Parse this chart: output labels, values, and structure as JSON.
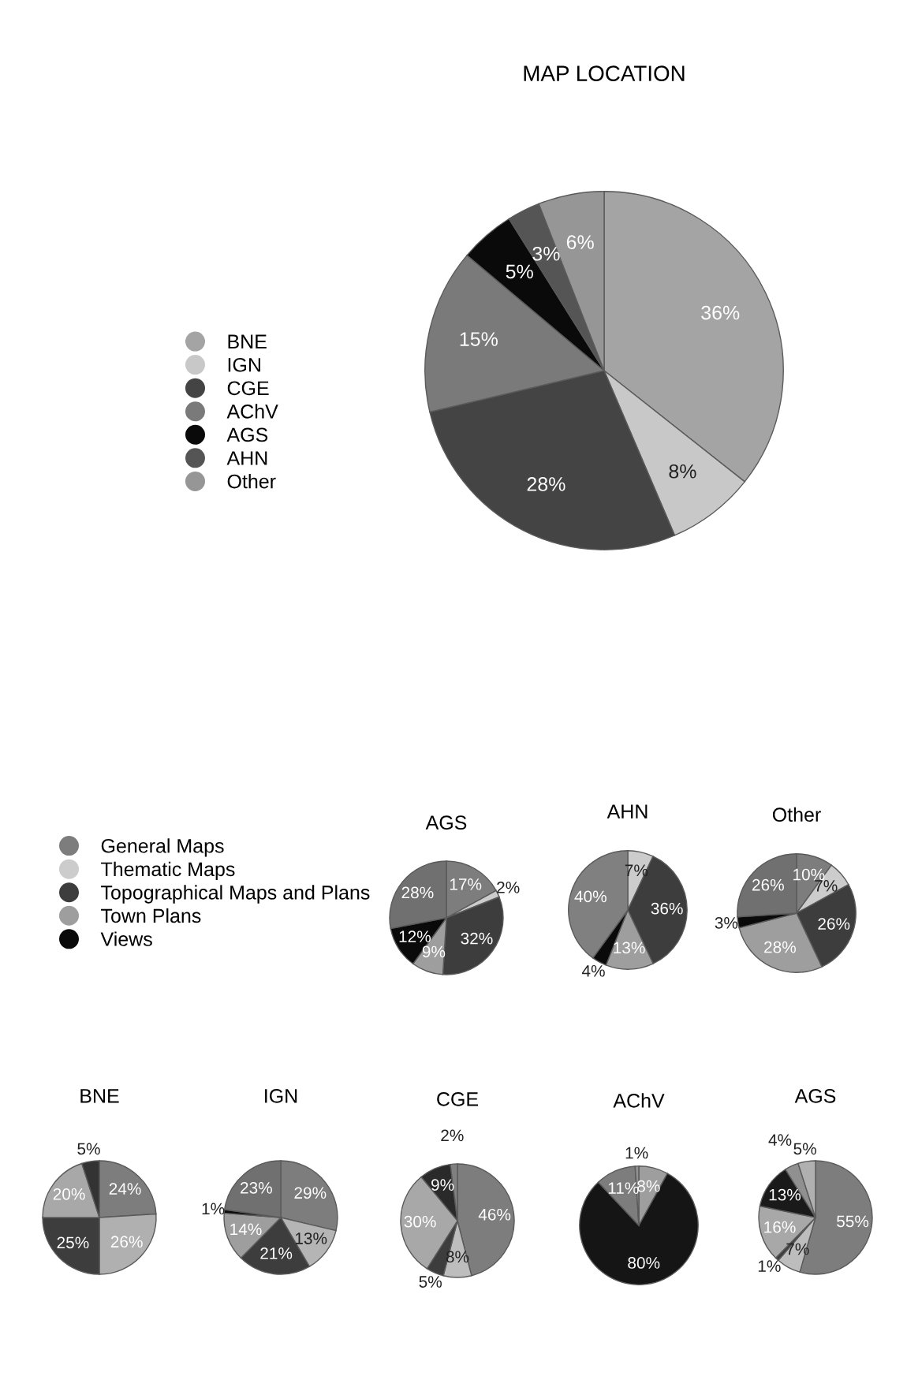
{
  "chart_data": [
    {
      "type": "pie",
      "title": "MAP LOCATION",
      "categories": [
        "BNE",
        "IGN",
        "CGE",
        "AChV",
        "AGS",
        "AHN",
        "Other"
      ],
      "values": [
        36,
        8,
        28,
        15,
        5,
        3,
        6
      ],
      "value_labels": [
        "36%",
        "8%",
        "28%",
        "15%",
        "5%",
        "3%",
        "6%"
      ],
      "colors": [
        "#a4a4a4",
        "#c8c8c8",
        "#444444",
        "#7a7a7a",
        "#0a0a0a",
        "#555555",
        "#969696"
      ],
      "legend": "left"
    },
    {
      "type": "pie",
      "title": "AGS",
      "categories": [
        "General Maps",
        "Thematic Maps",
        "Topographical Maps and Plans",
        "Town Plans",
        "Views",
        null
      ],
      "values": [
        17,
        2,
        32,
        9,
        12,
        28
      ],
      "value_labels": [
        "17%",
        "2%",
        "32%",
        "9%",
        "12%",
        "28%"
      ],
      "colors": [
        "#7d7d7d",
        "#cccccc",
        "#3d3d3d",
        "#9e9e9e",
        "#0a0a0a",
        "#707070"
      ],
      "legend": "left"
    },
    {
      "type": "pie",
      "title": "AHN",
      "categories": [
        null,
        null,
        null,
        null,
        null
      ],
      "values": [
        7,
        36,
        13,
        4,
        40
      ],
      "value_labels": [
        "7%",
        "36%",
        "13%",
        "4%",
        "40%"
      ],
      "colors": [
        "#cccccc",
        "#3d3d3d",
        "#9e9e9e",
        "#0a0a0a",
        "#808080"
      ]
    },
    {
      "type": "pie",
      "title": "Other",
      "categories": [
        null,
        null,
        null,
        null,
        null,
        null
      ],
      "values": [
        10,
        7,
        26,
        28,
        3,
        26
      ],
      "value_labels": [
        "10%",
        "7%",
        "26%",
        "28%",
        "3%",
        "26%"
      ],
      "colors": [
        "#7d7d7d",
        "#cccccc",
        "#3d3d3d",
        "#9e9e9e",
        "#0a0a0a",
        "#707070"
      ]
    },
    {
      "type": "pie",
      "title": "BNE",
      "categories": [
        null,
        null,
        null,
        null,
        null
      ],
      "values": [
        24,
        26,
        25,
        20,
        5
      ],
      "value_labels": [
        "24%",
        "26%",
        "25%",
        "20%",
        "5%"
      ],
      "colors": [
        "#7d7d7d",
        "#b0b0b0",
        "#3d3d3d",
        "#a8a8a8",
        "#333333"
      ]
    },
    {
      "type": "pie",
      "title": "IGN",
      "categories": [
        null,
        null,
        null,
        null,
        null,
        null
      ],
      "values": [
        29,
        13,
        21,
        14,
        1,
        23
      ],
      "value_labels": [
        "29%",
        "13%",
        "21%",
        "14%",
        "1%",
        "23%"
      ],
      "colors": [
        "#7d7d7d",
        "#b5b5b5",
        "#3d3d3d",
        "#9e9e9e",
        "#0a0a0a",
        "#707070"
      ]
    },
    {
      "type": "pie",
      "title": "CGE",
      "categories": [
        null,
        null,
        null,
        null,
        null,
        null
      ],
      "values": [
        46,
        8,
        5,
        30,
        9,
        2
      ],
      "value_labels": [
        "46%",
        "8%",
        "5%",
        "30%",
        "9%",
        "2%"
      ],
      "colors": [
        "#7d7d7d",
        "#bdbdbd",
        "#3d3d3d",
        "#a8a8a8",
        "#2a2a2a",
        "#808080"
      ]
    },
    {
      "type": "pie",
      "title": "AChV",
      "categories": [
        null,
        null,
        null,
        null
      ],
      "values": [
        8,
        80,
        11,
        1
      ],
      "value_labels": [
        "8%",
        "80%",
        "11%",
        "1%"
      ],
      "colors": [
        "#9e9e9e",
        "#151515",
        "#7d7d7d",
        "#909090"
      ]
    },
    {
      "type": "pie",
      "title": "AGS",
      "categories": [
        null,
        null,
        null,
        null,
        null,
        null,
        null
      ],
      "values": [
        55,
        7,
        1,
        16,
        13,
        4,
        5
      ],
      "value_labels": [
        "55%",
        "7%",
        "1%",
        "16%",
        "13%",
        "4%",
        "5%"
      ],
      "colors": [
        "#7d7d7d",
        "#bdbdbd",
        "#3d3d3d",
        "#a8a8a8",
        "#1a1a1a",
        "#909090",
        "#b0b0b0"
      ]
    }
  ]
}
